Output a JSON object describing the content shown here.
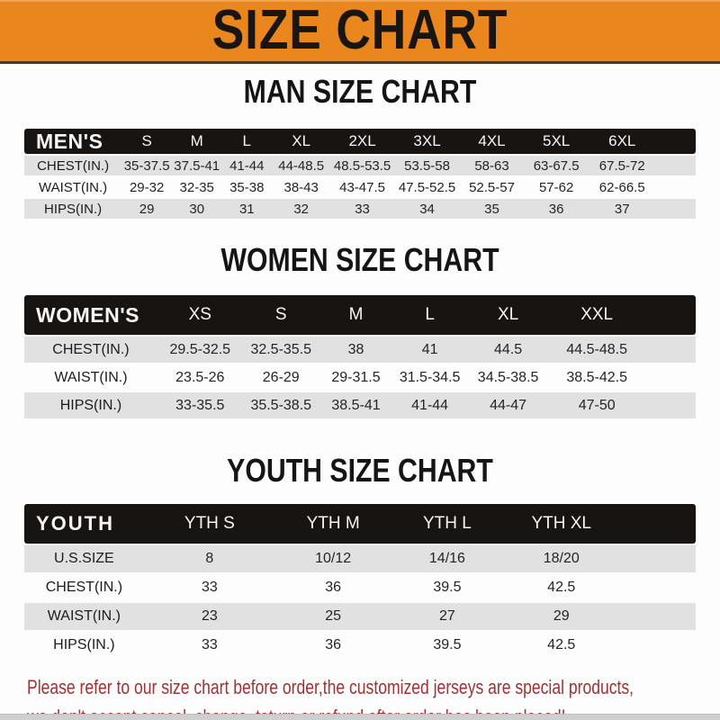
{
  "banner": {
    "title": "SIZE CHART"
  },
  "palette": {
    "banner_bg": "#E9871E",
    "header_bar": "#171412",
    "stripe_gray": "#E1E1E1",
    "notice_red": "#A33134"
  },
  "sections": [
    {
      "key": "men",
      "title": "MAN SIZE CHART",
      "table": {
        "header": [
          "MEN'S",
          "S",
          "M",
          "L",
          "XL",
          "2XL",
          "3XL",
          "4XL",
          "5XL",
          "6XL"
        ],
        "rows": [
          {
            "label": "CHEST(IN.)",
            "values": [
              "35-37.5",
              "37.5-41",
              "41-44",
              "44-48.5",
              "48.5-53.5",
              "53.5-58",
              "58-63",
              "63-67.5",
              "67.5-72"
            ]
          },
          {
            "label": "WAIST(IN.)",
            "values": [
              "29-32",
              "32-35",
              "35-38",
              "38-43",
              "43-47.5",
              "47.5-52.5",
              "52.5-57",
              "57-62",
              "62-66.5"
            ]
          },
          {
            "label": "HIPS(IN.)",
            "values": [
              "29",
              "30",
              "31",
              "32",
              "33",
              "34",
              "35",
              "36",
              "37"
            ]
          }
        ]
      }
    },
    {
      "key": "women",
      "title": "WOMEN SIZE CHART",
      "table": {
        "header": [
          "WOMEN'S",
          "XS",
          "S",
          "M",
          "L",
          "XL",
          "XXL"
        ],
        "rows": [
          {
            "label": "CHEST(IN.)",
            "values": [
              "29.5-32.5",
              "32.5-35.5",
              "38",
              "41",
              "44.5",
              "44.5-48.5"
            ]
          },
          {
            "label": "WAIST(IN.)",
            "values": [
              "23.5-26",
              "26-29",
              "29-31.5",
              "31.5-34.5",
              "34.5-38.5",
              "38.5-42.5"
            ]
          },
          {
            "label": "HIPS(IN.)",
            "values": [
              "33-35.5",
              "35.5-38.5",
              "38.5-41",
              "41-44",
              "44-47",
              "47-50"
            ]
          }
        ]
      }
    },
    {
      "key": "youth",
      "title": "YOUTH SIZE CHART",
      "table": {
        "header": [
          "YOUTH",
          "YTH S",
          "YTH M",
          "YTH L",
          "YTH XL"
        ],
        "rows": [
          {
            "label": "U.S.SIZE",
            "values": [
              "8",
              "10/12",
              "14/16",
              "18/20"
            ]
          },
          {
            "label": "CHEST(IN.)",
            "values": [
              "33",
              "36",
              "39.5",
              "42.5"
            ]
          },
          {
            "label": "WAIST(IN.)",
            "values": [
              "23",
              "25",
              "27",
              "29"
            ]
          },
          {
            "label": "HIPS(IN.)",
            "values": [
              "33",
              "36",
              "39.5",
              "42.5"
            ]
          }
        ]
      }
    }
  ],
  "footer": {
    "line1": "Please refer to our size chart before order,the customized jerseys are special products,",
    "line2": "we don't accept cancel, change, teturn or refund after order has been placed!"
  }
}
